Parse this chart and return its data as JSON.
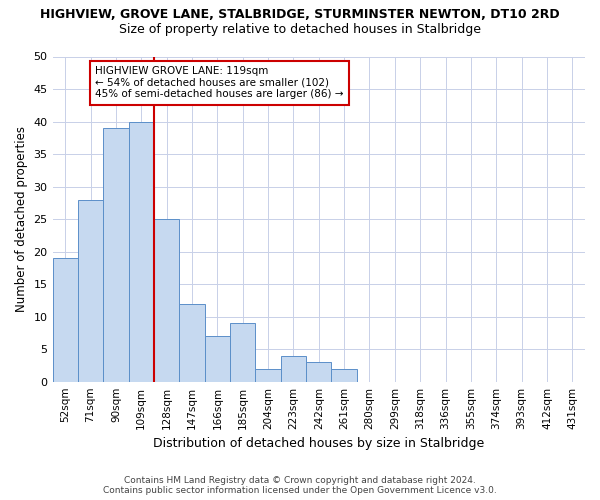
{
  "title": "HIGHVIEW, GROVE LANE, STALBRIDGE, STURMINSTER NEWTON, DT10 2RD",
  "subtitle": "Size of property relative to detached houses in Stalbridge",
  "xlabel": "Distribution of detached houses by size in Stalbridge",
  "ylabel": "Number of detached properties",
  "categories": [
    "52sqm",
    "71sqm",
    "90sqm",
    "109sqm",
    "128sqm",
    "147sqm",
    "166sqm",
    "185sqm",
    "204sqm",
    "223sqm",
    "242sqm",
    "261sqm",
    "280sqm",
    "299sqm",
    "318sqm",
    "336sqm",
    "355sqm",
    "374sqm",
    "393sqm",
    "412sqm",
    "431sqm"
  ],
  "values": [
    19,
    28,
    39,
    40,
    25,
    12,
    7,
    9,
    2,
    4,
    3,
    2,
    0,
    0,
    0,
    0,
    0,
    0,
    0,
    0,
    0
  ],
  "bar_color": "#c6d9f0",
  "bar_edge_color": "#5b8fc9",
  "red_line_x": 3.5,
  "annotation_line1": "HIGHVIEW GROVE LANE: 119sqm",
  "annotation_line2": "← 54% of detached houses are smaller (102)",
  "annotation_line3": "45% of semi-detached houses are larger (86) →",
  "annotation_box_color": "#ffffff",
  "annotation_box_edge": "#cc0000",
  "red_line_color": "#cc0000",
  "ylim": [
    0,
    50
  ],
  "yticks": [
    0,
    5,
    10,
    15,
    20,
    25,
    30,
    35,
    40,
    45,
    50
  ],
  "footer1": "Contains HM Land Registry data © Crown copyright and database right 2024.",
  "footer2": "Contains public sector information licensed under the Open Government Licence v3.0.",
  "bg_color": "#ffffff",
  "grid_color": "#c8d0e8"
}
